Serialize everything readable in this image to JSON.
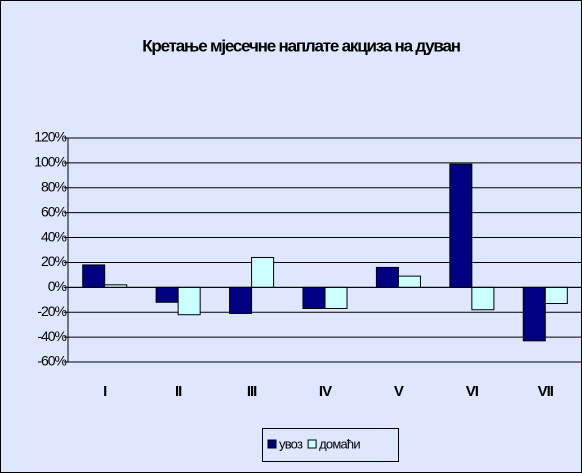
{
  "chart_data": {
    "type": "bar",
    "title": "Кретање мјесечне наплате акциза на дуван",
    "categories": [
      "I",
      "II",
      "III",
      "IV",
      "V",
      "VI",
      "VII"
    ],
    "series": [
      {
        "name": "увоз",
        "color": "#000080",
        "values": [
          18,
          -12,
          -21,
          -17,
          16,
          99,
          -43
        ]
      },
      {
        "name": "домаћи",
        "color": "#ccffff",
        "values": [
          2,
          -22,
          24,
          -17,
          9,
          -18,
          -13
        ]
      }
    ],
    "ylim": [
      -60,
      120
    ],
    "yticks": [
      {
        "value": -60,
        "label": "-60%"
      },
      {
        "value": -40,
        "label": "-40%"
      },
      {
        "value": -20,
        "label": "-20%"
      },
      {
        "value": 0,
        "label": "0%"
      },
      {
        "value": 20,
        "label": "20%"
      },
      {
        "value": 40,
        "label": "40%"
      },
      {
        "value": 60,
        "label": "60%"
      },
      {
        "value": 80,
        "label": "80%"
      },
      {
        "value": 100,
        "label": "100%"
      },
      {
        "value": 120,
        "label": "120%"
      }
    ],
    "grid": true,
    "legend": "bottom"
  }
}
